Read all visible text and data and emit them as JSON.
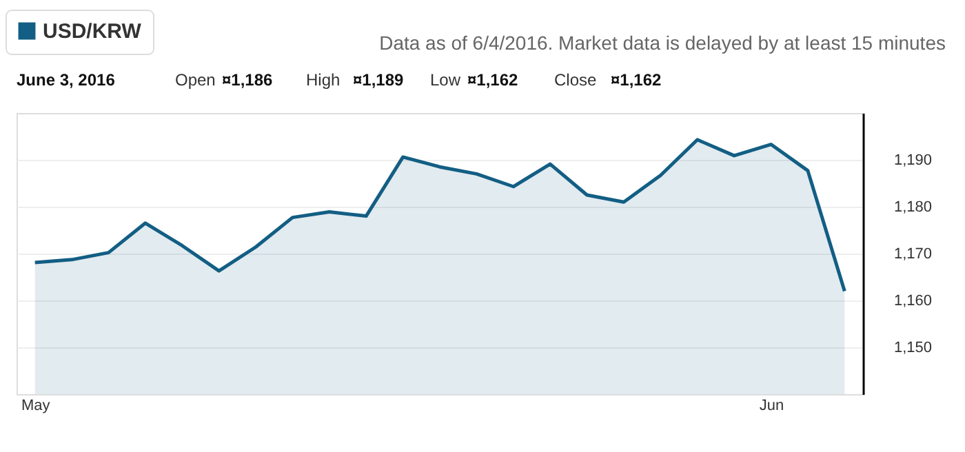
{
  "chart_data": {
    "type": "area",
    "categories": [
      "May",
      null,
      null,
      null,
      null,
      null,
      null,
      null,
      null,
      null,
      null,
      null,
      null,
      null,
      null,
      null,
      null,
      null,
      null,
      null,
      "Jun",
      null,
      null
    ],
    "series": [
      {
        "name": "USD/KRW",
        "color": "#135e84",
        "values": [
          1168.1,
          1168.7,
          1170.2,
          1176.5,
          1171.7,
          1166.3,
          1171.4,
          1177.7,
          1178.9,
          1178.0,
          1190.6,
          1188.5,
          1187.0,
          1184.3,
          1189.1,
          1182.5,
          1181.0,
          1186.7,
          1194.3,
          1190.9,
          1193.3,
          1187.7,
          1162
        ]
      }
    ],
    "ylim": [
      1140,
      1200
    ],
    "yticks": [
      {
        "value": 1150,
        "label": "1,150"
      },
      {
        "value": 1160,
        "label": "1,160"
      },
      {
        "value": 1170,
        "label": "1,170"
      },
      {
        "value": 1180,
        "label": "1,180"
      },
      {
        "value": 1190,
        "label": "1,190"
      }
    ],
    "grid": "y",
    "legend": "top left",
    "line_style": "solid",
    "marker": "none",
    "annotations": [
      "Data as of 6/4/2016. Market data is delayed by at least 15 minutes",
      "June 3, 2016",
      "Open ¤1,186",
      "High ¤1,189",
      "Low ¤1,162",
      "Close ¤1,162"
    ]
  }
}
